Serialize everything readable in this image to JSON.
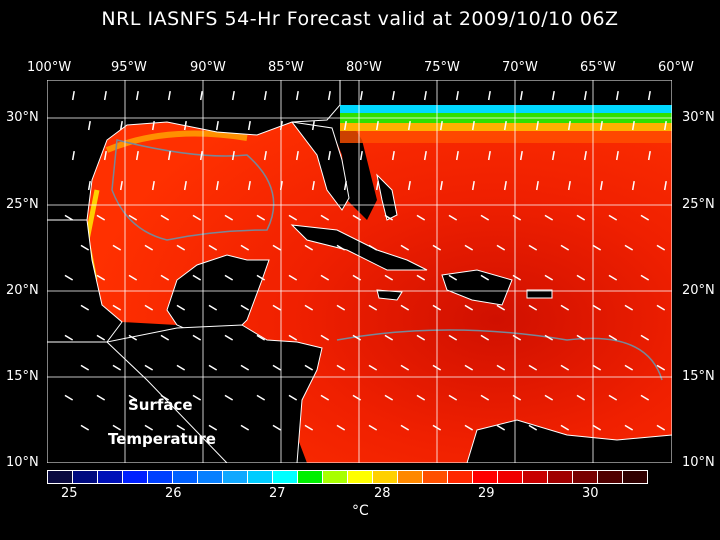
{
  "title": "NRL IASNFS  54-Hr Forecast valid at 2009/10/10 06Z",
  "lon_labels": [
    "100°W",
    "95°W",
    "90°W",
    "85°W",
    "80°W",
    "75°W",
    "70°W",
    "65°W",
    "60°W"
  ],
  "lat_labels": [
    "30°N",
    "25°N",
    "20°N",
    "15°N",
    "10°N"
  ],
  "overlay": {
    "line1": "Surface",
    "line2": "Temperature"
  },
  "colorbar": {
    "colors": [
      "#0a0a40",
      "#000a80",
      "#0010b8",
      "#0020ff",
      "#0040ff",
      "#0060ff",
      "#0880ff",
      "#10a8ff",
      "#00ccff",
      "#00ffff",
      "#00f000",
      "#a8ff00",
      "#ffff00",
      "#ffd000",
      "#ff8800",
      "#ff5000",
      "#ff2800",
      "#ff0000",
      "#f00000",
      "#c80000",
      "#a00000",
      "#780000",
      "#500000",
      "#300000"
    ],
    "tick_labels": [
      "25",
      "26",
      "27",
      "28",
      "29",
      "30"
    ],
    "unit": "°C"
  }
}
